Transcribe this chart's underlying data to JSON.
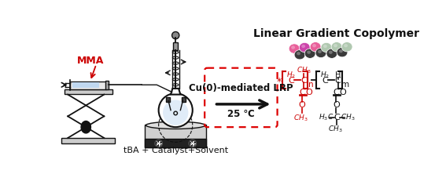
{
  "title": "Linear Gradient Copolymer",
  "label_mma": "MMA",
  "label_tba": "tBA + Catalyst+Solvent",
  "label_reaction": "Cu(0)-mediated LRP",
  "label_temp": "25 ℃",
  "bg_color": "#ffffff",
  "red_color": "#cc0000",
  "dark_color": "#111111",
  "gray_color": "#888888",
  "dashed_box_color": "#dd0000",
  "title_fontsize": 10,
  "label_fontsize": 8,
  "small_fontsize": 6.5,
  "chem_fontsize": 7.5,
  "ball_pink": "#e8609a",
  "ball_dark": "#3a3a3a",
  "ball_light": "#b0c8b0",
  "ball_magenta": "#cc44aa"
}
